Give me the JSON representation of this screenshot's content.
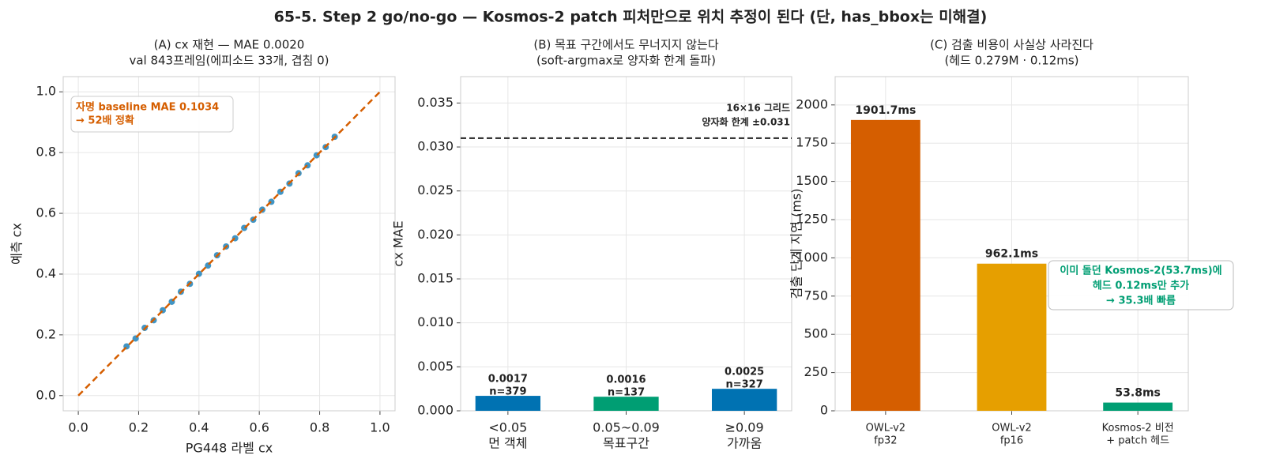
{
  "title": "65-5. Step 2 go/no-go — Kosmos-2 patch 피처만으로 위치 추정이 된다 (단, has_bbox는 미해결)",
  "chart_data": [
    {
      "type": "scatter",
      "title": [
        "(A) cx 재현 — MAE 0.0020",
        "val 843프레임(에피소드 33개, 겹침 0)"
      ],
      "xlabel": "PG448 라벨 cx",
      "ylabel": "예측 cx",
      "x": [
        0.16,
        0.19,
        0.22,
        0.25,
        0.28,
        0.31,
        0.34,
        0.37,
        0.4,
        0.43,
        0.46,
        0.49,
        0.52,
        0.55,
        0.58,
        0.61,
        0.64,
        0.67,
        0.7,
        0.73,
        0.76,
        0.79,
        0.82,
        0.85
      ],
      "y": [
        0.162,
        0.188,
        0.223,
        0.248,
        0.281,
        0.309,
        0.342,
        0.368,
        0.401,
        0.428,
        0.462,
        0.491,
        0.518,
        0.552,
        0.579,
        0.612,
        0.638,
        0.671,
        0.698,
        0.732,
        0.758,
        0.791,
        0.818,
        0.852
      ],
      "color": "#0072b2",
      "ref_line": {
        "x": [
          0,
          1
        ],
        "y": [
          0,
          1
        ],
        "color": "#d55e00"
      },
      "annotation": [
        "자명 baseline MAE 0.1034",
        "→ 52배 정확"
      ],
      "annotation_color": "#d55e00",
      "xlim": [
        -0.05,
        1.05
      ],
      "ylim": [
        -0.05,
        1.05
      ],
      "xticks": [
        {
          "value": 0,
          "label": "0.0"
        },
        0.2,
        0.4,
        0.6,
        0.8,
        {
          "value": 1,
          "label": "1.0"
        }
      ],
      "yticks": [
        {
          "value": 0,
          "label": "0.0"
        },
        0.2,
        0.4,
        0.6,
        0.8,
        {
          "value": 1,
          "label": "1.0"
        }
      ],
      "grid": true
    },
    {
      "type": "bar",
      "title": [
        "(B) 목표 구간에서도 무너지지 않는다",
        "(soft-argmax로 양자화 한계 돌파)"
      ],
      "ylabel": "cx MAE",
      "categories": [
        [
          "<0.05",
          "먼 객체"
        ],
        [
          "0.05~0.09",
          "목표구간"
        ],
        [
          "≥0.09",
          "가까움"
        ]
      ],
      "values": [
        0.0017,
        0.0016,
        0.0025
      ],
      "n_labels": [
        "n=379",
        "n=137",
        "n=327"
      ],
      "colors": [
        "#0072b2",
        "#009e73",
        "#0072b2"
      ],
      "hline": 0.031,
      "hline_label": [
        "16×16 그리드",
        "양자화 한계 ±0.031"
      ],
      "ylim": [
        0,
        0.038
      ],
      "yticks": [
        {
          "value": 0,
          "label": "0.000"
        },
        0.005,
        {
          "value": 0.01,
          "label": "0.010"
        },
        0.015,
        {
          "value": 0.02,
          "label": "0.020"
        },
        0.025,
        {
          "value": 0.03,
          "label": "0.030"
        },
        0.035
      ],
      "grid": true
    },
    {
      "type": "bar",
      "title": [
        "(C) 검출 비용이 사실상 사라진다",
        "(헤드 0.279M · 0.12ms)"
      ],
      "ylabel": "검출 단계 지연 (ms)",
      "categories": [
        [
          "OWL-v2",
          "fp32"
        ],
        [
          "OWL-v2",
          "fp16"
        ],
        [
          "Kosmos-2 비전",
          "+ patch 헤드"
        ]
      ],
      "values": [
        1901.7,
        962.1,
        53.8
      ],
      "value_labels": [
        "1901.7ms",
        "962.1ms",
        "53.8ms"
      ],
      "colors": [
        "#d55e00",
        "#e69f00",
        "#009e73"
      ],
      "annotation": [
        "이미 돌던 Kosmos-2(53.7ms)에",
        "헤드 0.12ms만 추가",
        "→ 35.3배 빠름"
      ],
      "annotation_color": "#009e73",
      "ylim": [
        0,
        2185
      ],
      "yticks": [
        0,
        250,
        500,
        750,
        1000,
        1250,
        1500,
        1750,
        2000
      ],
      "grid": true
    }
  ]
}
